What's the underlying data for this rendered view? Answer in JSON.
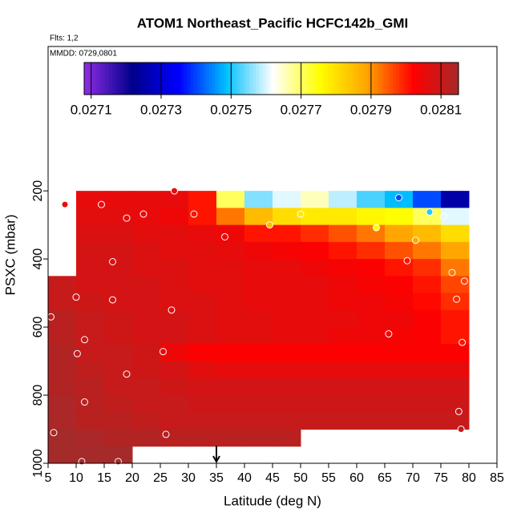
{
  "chart_data": {
    "type": "heatmap",
    "title": "ATOM1 Northeast_Pacific HCFC142b_GMI",
    "flights": "Flts: 1,2",
    "dates": "MMDD: 0729,0801",
    "x_label": "Latitude (deg N)",
    "y_label": "PSXC (mbar)",
    "xlim": [
      5,
      85
    ],
    "xticks": [
      5,
      10,
      15,
      20,
      25,
      30,
      35,
      40,
      45,
      50,
      55,
      60,
      65,
      70,
      75,
      80,
      85
    ],
    "ylim": [
      1000,
      -224
    ],
    "yticks": [
      200,
      400,
      600,
      800,
      1000
    ],
    "colormap": [
      "#8a2be2",
      "#00008b",
      "#0000ff",
      "#00bfff",
      "#ffffff",
      "#ffff00",
      "#ffa500",
      "#ff0000",
      "#a52a2a"
    ],
    "colorbar_lim": [
      0.02708,
      0.02815
    ],
    "colorbar_ticks": [
      0.0271,
      0.0273,
      0.0275,
      0.0277,
      0.0279,
      0.0281
    ],
    "marker_lat": 35,
    "x_edges": [
      5,
      10,
      15,
      20,
      25,
      30,
      35,
      40,
      45,
      50,
      55,
      60,
      65,
      70,
      75,
      80
    ],
    "y_edges": [
      200,
      250,
      300,
      350,
      400,
      450,
      500,
      550,
      600,
      650,
      700,
      750,
      800,
      850,
      900,
      950,
      1000
    ],
    "values": [
      [
        null,
        0.02805,
        0.02805,
        0.02805,
        0.02805,
        0.028,
        0.0277,
        0.02755,
        0.0276,
        0.02765,
        0.02758,
        0.02752,
        0.02748,
        0.0274,
        0.02725
      ],
      [
        null,
        0.02806,
        0.02806,
        0.02805,
        0.02804,
        0.028,
        0.02792,
        0.02785,
        0.0278,
        0.02778,
        0.02778,
        0.02776,
        0.02775,
        0.0277,
        0.0276
      ],
      [
        null,
        0.02807,
        0.02807,
        0.02806,
        0.02806,
        0.02805,
        0.02804,
        0.028,
        0.028,
        0.02798,
        0.02795,
        0.02792,
        0.02788,
        0.02785,
        0.0278
      ],
      [
        null,
        0.02808,
        0.02808,
        0.02807,
        0.02806,
        0.02806,
        0.02805,
        0.02804,
        0.02803,
        0.02802,
        0.028,
        0.02798,
        0.02795,
        0.02792,
        0.02788
      ],
      [
        null,
        0.02808,
        0.02808,
        0.02807,
        0.02807,
        0.02806,
        0.02806,
        0.02805,
        0.02805,
        0.02804,
        0.02803,
        0.02802,
        0.028,
        0.02798,
        0.02792
      ],
      [
        0.0281,
        0.02808,
        0.02808,
        0.02808,
        0.02807,
        0.02806,
        0.02806,
        0.02805,
        0.02805,
        0.02805,
        0.02804,
        0.02803,
        0.02802,
        0.028,
        0.02796
      ],
      [
        0.0281,
        0.02809,
        0.02808,
        0.02808,
        0.02807,
        0.02807,
        0.02806,
        0.02805,
        0.02805,
        0.02805,
        0.02804,
        0.02804,
        0.02803,
        0.02801,
        0.02798
      ],
      [
        0.02812,
        0.0281,
        0.02809,
        0.02808,
        0.02808,
        0.02807,
        0.02806,
        0.02806,
        0.02805,
        0.02805,
        0.02805,
        0.02804,
        0.02804,
        0.02802,
        0.028
      ],
      [
        0.02812,
        0.0281,
        0.02809,
        0.02808,
        0.02808,
        0.02807,
        0.02806,
        0.02806,
        0.02805,
        0.02805,
        0.02804,
        0.02804,
        0.02803,
        0.02802,
        0.028
      ],
      [
        0.02813,
        0.0281,
        0.0281,
        0.02809,
        0.02804,
        0.02802,
        0.02802,
        0.02802,
        0.02802,
        0.02802,
        0.02802,
        0.02802,
        0.02802,
        0.02802,
        0.02802
      ],
      [
        0.02813,
        0.02811,
        0.0281,
        0.02809,
        0.02808,
        0.02806,
        0.02805,
        0.02805,
        0.02805,
        0.02805,
        0.02805,
        0.02805,
        0.02805,
        0.02805,
        0.02805
      ],
      [
        0.02813,
        0.02812,
        0.0281,
        0.0281,
        0.02809,
        0.02808,
        0.02808,
        0.02808,
        0.02808,
        0.02808,
        0.02808,
        0.02808,
        0.02808,
        0.02808,
        0.02808
      ],
      [
        0.02814,
        0.02812,
        0.02811,
        0.0281,
        0.0281,
        0.02809,
        0.02809,
        0.02809,
        0.02809,
        0.02809,
        0.02809,
        0.02809,
        0.02809,
        0.02809,
        0.02809
      ],
      [
        0.02814,
        0.02812,
        0.02812,
        0.02811,
        0.0281,
        0.0281,
        0.0281,
        0.0281,
        0.0281,
        0.0281,
        0.0281,
        0.0281,
        0.0281,
        0.0281,
        0.0281
      ],
      [
        0.02815,
        0.02814,
        0.02813,
        0.02813,
        0.02812,
        0.02812,
        0.02812,
        0.02812,
        0.02812,
        null,
        null,
        null,
        null,
        null,
        null
      ],
      [
        0.02815,
        0.02815,
        0.02815,
        null,
        null,
        null,
        null,
        null,
        null,
        null,
        null,
        null,
        null,
        null,
        null
      ]
    ],
    "points": {
      "x": [
        8,
        14.5,
        22,
        19,
        31,
        27.5,
        44.5,
        50,
        36.5,
        63.5,
        67.5,
        73,
        75.5,
        70.5,
        69,
        16.5,
        10,
        16.5,
        27,
        5.5,
        11.5,
        10.2,
        25.5,
        19,
        11.5,
        26,
        6,
        11,
        17.5,
        65.7,
        78.8,
        79.2,
        77,
        77.8,
        78.2,
        78.6
      ],
      "y": [
        240,
        240,
        268,
        280,
        268,
        200,
        300,
        268,
        335,
        308,
        220,
        262,
        275,
        345,
        405,
        408,
        512,
        520,
        550,
        570,
        637,
        678,
        672,
        738,
        820,
        915,
        910,
        995,
        995,
        620,
        645,
        465,
        440,
        518,
        848,
        900
      ],
      "values": [
        0.02805,
        0.02805,
        0.02804,
        0.02805,
        0.028,
        0.02805,
        0.02785,
        0.02778,
        0.02804,
        0.02775,
        0.0274,
        0.0275,
        0.0276,
        0.02788,
        0.028,
        0.02808,
        0.02809,
        0.02808,
        0.02806,
        0.02812,
        0.0281,
        0.0281,
        0.02804,
        0.0281,
        0.02812,
        0.02812,
        0.02815,
        0.02815,
        0.02815,
        0.02803,
        0.028,
        0.02796,
        0.02792,
        0.02798,
        0.02809,
        0.0281
      ]
    }
  }
}
